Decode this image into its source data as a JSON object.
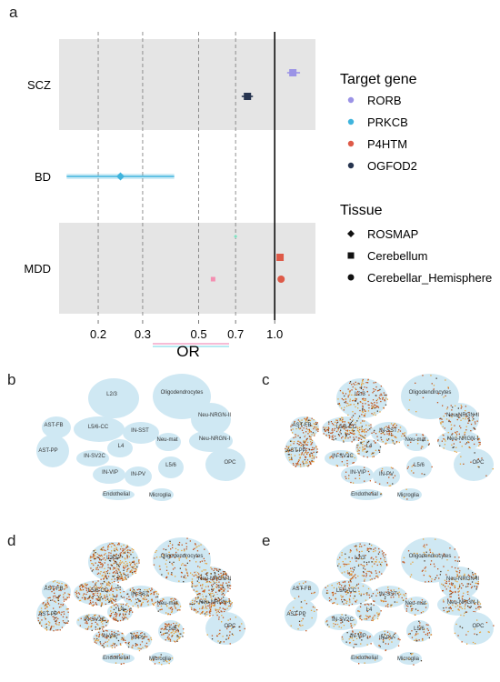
{
  "panels": {
    "a": "a",
    "b": "b",
    "c": "c",
    "d": "d",
    "e": "e"
  },
  "chart_data": {
    "type": "forest",
    "xlabel": "OR",
    "x_scale": "log",
    "x_ticks": [
      0.2,
      0.3,
      0.5,
      0.7,
      1.0
    ],
    "x_tick_labels": [
      "0.2",
      "0.3",
      "0.5",
      "0.7",
      "1.0"
    ],
    "xlim": [
      0.14,
      1.45
    ],
    "reference_line": 1.0,
    "categories": [
      "SCZ",
      "BD",
      "MDD"
    ],
    "points": [
      {
        "disorder": "SCZ",
        "gene": "RORB",
        "tissue": "Cerebellum",
        "or": 1.18,
        "ci": [
          1.12,
          1.26
        ]
      },
      {
        "disorder": "SCZ",
        "gene": "OGFOD2",
        "tissue": "Cerebellum",
        "or": 0.78,
        "ci": [
          0.74,
          0.82
        ]
      },
      {
        "disorder": "BD",
        "gene": "PRKCB",
        "tissue": "ROSMAP",
        "or": 0.245,
        "ci": [
          0.15,
          0.4
        ]
      },
      {
        "disorder": "MDD",
        "gene": "PRKCB",
        "tissue": "ROSMAP",
        "or": 0.7,
        "ci": [
          0.7,
          0.7
        ]
      },
      {
        "disorder": "MDD",
        "gene": "P4HTM",
        "tissue": "Cerebellum",
        "or": 1.05,
        "ci": [
          1.04,
          1.06
        ]
      },
      {
        "disorder": "MDD",
        "gene": "RORB",
        "tissue": "Cerebellum",
        "or": 0.57,
        "ci": [
          0.56,
          0.58
        ]
      },
      {
        "disorder": "MDD",
        "gene": "P4HTM",
        "tissue": "Cerebellar_Hemisphere",
        "or": 1.06,
        "ci": [
          1.04,
          1.08
        ]
      }
    ],
    "legend_gene": {
      "title": "Target gene",
      "items": [
        {
          "label": "RORB",
          "color": "#9b93e6"
        },
        {
          "label": "PRKCB",
          "color": "#3fb4dd"
        },
        {
          "label": "P4HTM",
          "color": "#de5a48"
        },
        {
          "label": "OGFOD2",
          "color": "#26344f"
        }
      ]
    },
    "legend_tissue": {
      "title": "Tissue",
      "items": [
        {
          "label": "ROSMAP",
          "shape": "diamond"
        },
        {
          "label": "Cerebellum",
          "shape": "square"
        },
        {
          "label": "Cerebellar_Hemisphere",
          "shape": "circle"
        }
      ]
    }
  },
  "umap_labels": [
    "L2/3",
    "Oligodendrocytes",
    "Neu-NRGN-II",
    "AST-FB",
    "L5/6-CC",
    "IN-SST",
    "Neu-mat",
    "Neu-NRGN-I",
    "AST-PP",
    "L4",
    "IN-SV2C",
    "L5/6",
    "OPC",
    "IN-VIP",
    "IN-PV",
    "Endothelial",
    "Microglia"
  ],
  "umap_colors": {
    "base": "#cfe8f3",
    "high": "#c2521a",
    "mid": "#e7a23b",
    "dark": "#4a3b2a"
  }
}
